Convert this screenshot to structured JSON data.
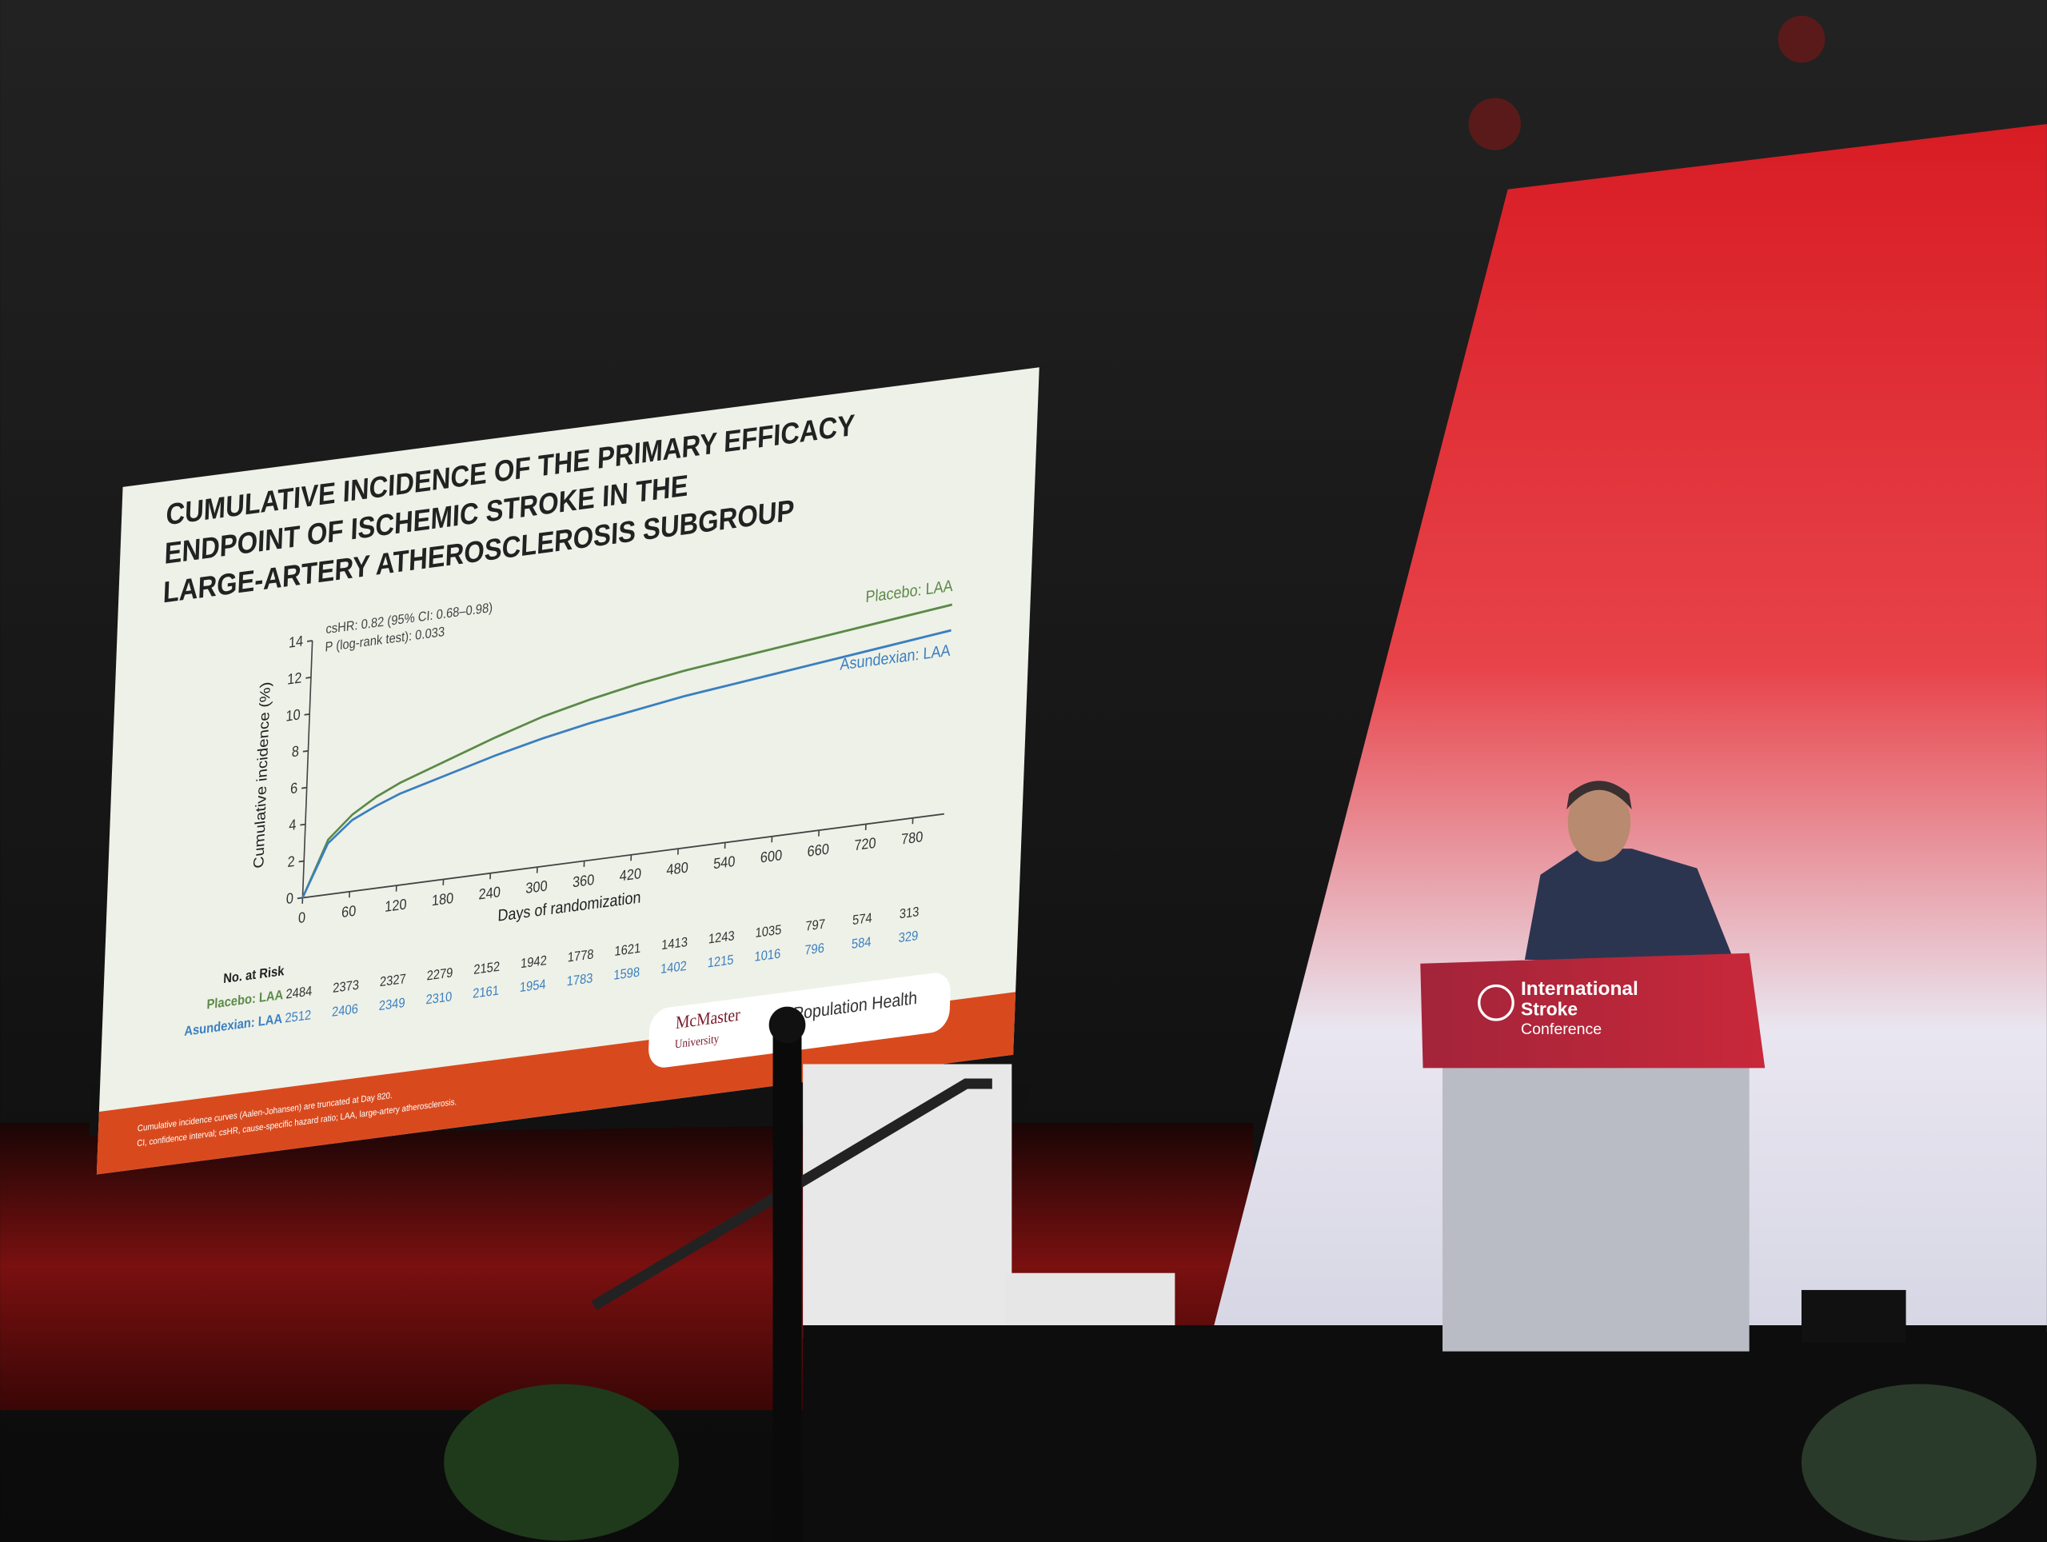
{
  "slide": {
    "title_lines": [
      "CUMULATIVE INCIDENCE OF THE PRIMARY EFFICACY",
      "ENDPOINT OF ISCHEMIC STROKE IN THE",
      "LARGE-ARTERY ATHEROSCLEROSIS SUBGROUP"
    ],
    "footnotes": [
      "Cumulative incidence curves (Aalen-Johansen) are truncated at Day 820.",
      "CI, confidence interval; csHR, cause-specific hazard ratio; LAA, large-artery atherosclerosis."
    ],
    "logo_lines": [
      "McMaster",
      "University",
      "Population Health"
    ]
  },
  "chart_data": {
    "type": "line",
    "y_label": "Cumulative incidence (%)",
    "x_label": "Days of randomization",
    "annotations": [
      "csHR: 0.82 (95% CI: 0.68–0.98)",
      "P (log-rank test): 0.033"
    ],
    "x": [
      0,
      30,
      60,
      90,
      120,
      180,
      240,
      300,
      360,
      420,
      480,
      540,
      600,
      660,
      720,
      780,
      820
    ],
    "series": [
      {
        "name": "Placebo: LAA",
        "color": "#5b8a48",
        "values": [
          0,
          3.0,
          4.2,
          5.0,
          5.6,
          6.5,
          7.4,
          8.2,
          8.8,
          9.3,
          9.7,
          10.0,
          10.3,
          10.6,
          10.9,
          11.2,
          11.4
        ]
      },
      {
        "name": "Asundexian: LAA",
        "color": "#3a7fc0",
        "values": [
          0,
          2.8,
          3.9,
          4.5,
          5.0,
          5.7,
          6.4,
          7.0,
          7.5,
          7.9,
          8.3,
          8.6,
          8.9,
          9.2,
          9.5,
          9.8,
          10.0
        ]
      }
    ],
    "xlim": [
      0,
      820
    ],
    "xticks": [
      0,
      60,
      120,
      180,
      240,
      300,
      360,
      420,
      480,
      540,
      600,
      660,
      720,
      780
    ],
    "ylim": [
      0,
      14
    ],
    "yticks": [
      0,
      2,
      4,
      6,
      8,
      10,
      12,
      14
    ],
    "risk_table": {
      "title": "No. at Risk",
      "rows": [
        [
          2484,
          2373,
          2327,
          2279,
          2152,
          1942,
          1778,
          1621,
          1413,
          1243,
          1035,
          797,
          574,
          313
        ],
        [
          2512,
          2406,
          2349,
          2310,
          2161,
          1954,
          1783,
          1598,
          1402,
          1215,
          1016,
          796,
          584,
          329
        ]
      ]
    }
  },
  "podium": {
    "lines": [
      "International",
      "Stroke",
      "Conference"
    ]
  }
}
